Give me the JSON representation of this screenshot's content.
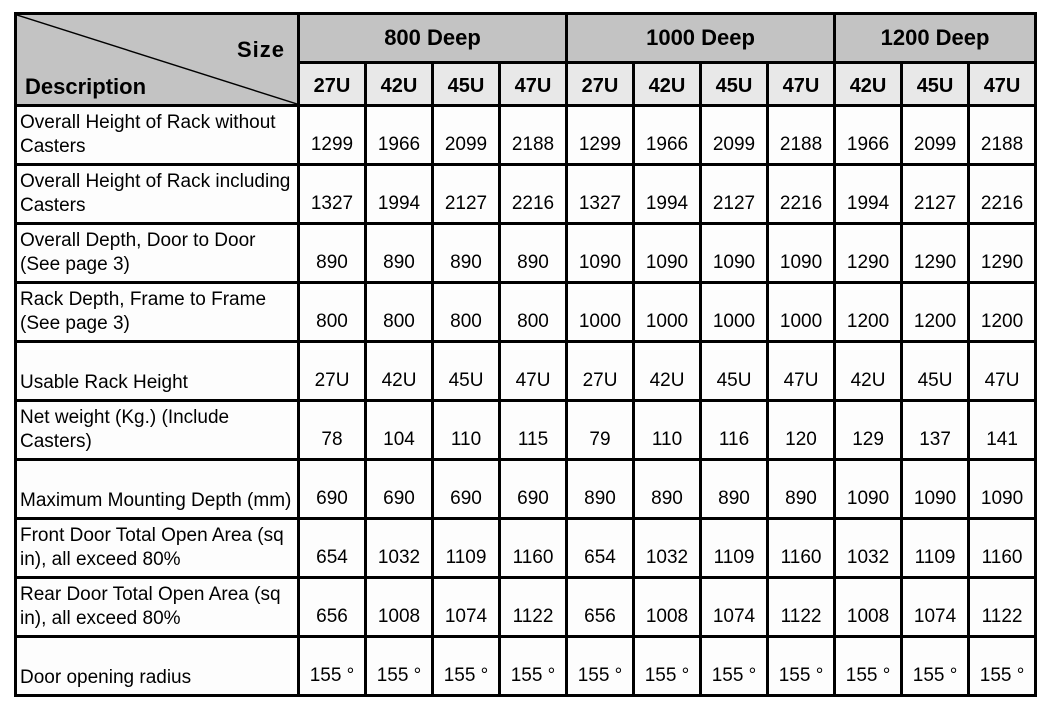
{
  "table": {
    "corner": {
      "top_label": "Size",
      "bottom_label": "Description"
    },
    "groups": [
      {
        "label": "800 Deep",
        "span": 4
      },
      {
        "label": "1000 Deep",
        "span": 4
      },
      {
        "label": "1200 Deep",
        "span": 3
      }
    ],
    "size_columns": [
      "27U",
      "42U",
      "45U",
      "47U",
      "27U",
      "42U",
      "45U",
      "47U",
      "42U",
      "45U",
      "47U"
    ],
    "rows": [
      {
        "description": "Overall Height of Rack without Casters",
        "values": [
          "1299",
          "1966",
          "2099",
          "2188",
          "1299",
          "1966",
          "2099",
          "2188",
          "1966",
          "2099",
          "2188"
        ]
      },
      {
        "description": "Overall Height of Rack including Casters",
        "values": [
          "1327",
          "1994",
          "2127",
          "2216",
          "1327",
          "1994",
          "2127",
          "2216",
          "1994",
          "2127",
          "2216"
        ]
      },
      {
        "description": "Overall Depth, Door to Door (See page 3)",
        "values": [
          "890",
          "890",
          "890",
          "890",
          "1090",
          "1090",
          "1090",
          "1090",
          "1290",
          "1290",
          "1290"
        ]
      },
      {
        "description": "Rack Depth, Frame to Frame (See page 3)",
        "values": [
          "800",
          "800",
          "800",
          "800",
          "1000",
          "1000",
          "1000",
          "1000",
          "1200",
          "1200",
          "1200"
        ]
      },
      {
        "description": "Usable Rack Height",
        "values": [
          "27U",
          "42U",
          "45U",
          "47U",
          "27U",
          "42U",
          "45U",
          "47U",
          "42U",
          "45U",
          "47U"
        ]
      },
      {
        "description": "Net weight (Kg.) (Include Casters)",
        "values": [
          "78",
          "104",
          "110",
          "115",
          "79",
          "110",
          "116",
          "120",
          "129",
          "137",
          "141"
        ]
      },
      {
        "description": "Maximum Mounting Depth (mm)",
        "values": [
          "690",
          "690",
          "690",
          "690",
          "890",
          "890",
          "890",
          "890",
          "1090",
          "1090",
          "1090"
        ]
      },
      {
        "description": "Front Door Total Open Area (sq in), all exceed 80%",
        "values": [
          "654",
          "1032",
          "1109",
          "1160",
          "654",
          "1032",
          "1109",
          "1160",
          "1032",
          "1109",
          "1160"
        ]
      },
      {
        "description": "Rear Door Total Open Area (sq in), all exceed 80%",
        "values": [
          "656",
          "1008",
          "1074",
          "1122",
          "656",
          "1008",
          "1074",
          "1122",
          "1008",
          "1074",
          "1122"
        ]
      },
      {
        "description": "Door opening radius",
        "values": [
          "155 °",
          "155 °",
          "155 °",
          "155 °",
          "155 °",
          "155 °",
          "155 °",
          "155 °",
          "155 °",
          "155 °",
          "155 °"
        ]
      }
    ],
    "colors": {
      "header_bg": "#c3c3c3",
      "subheader_bg": "#e8e8e8",
      "body_bg": "#fdfdfd",
      "border": "#000000"
    }
  }
}
